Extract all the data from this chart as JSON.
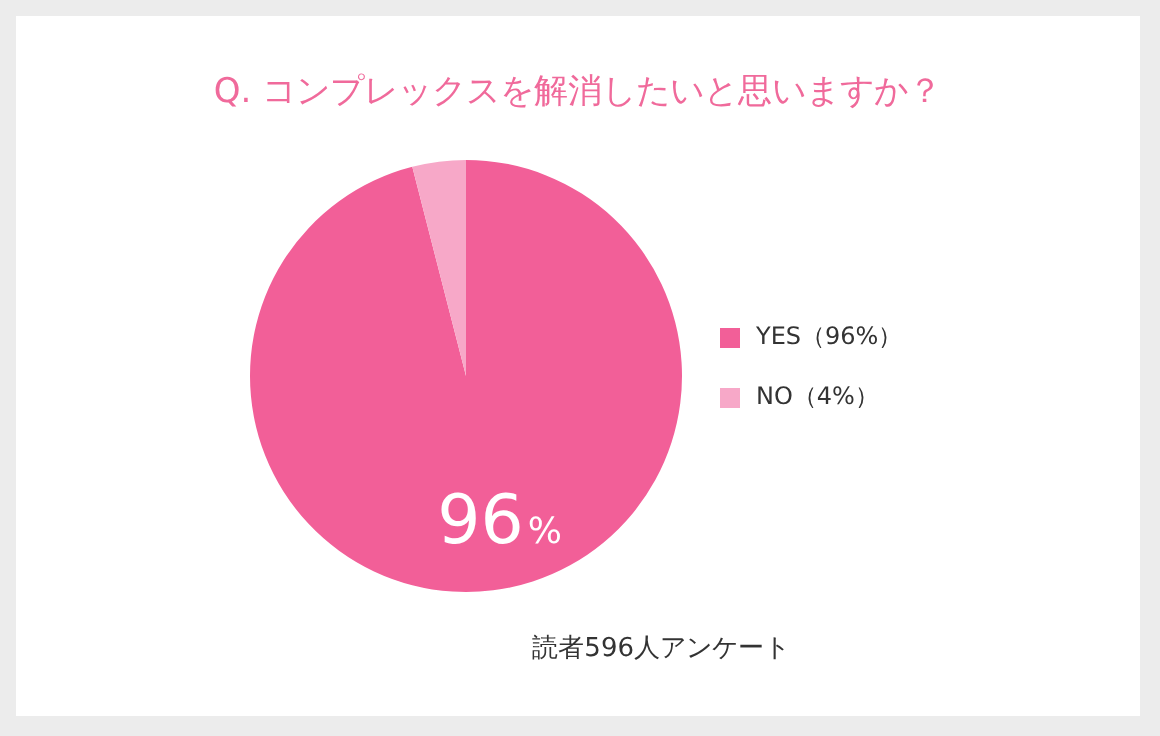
{
  "chart_data": {
    "type": "pie",
    "title": "Q. コンプレックスを解消したいと思いますか？",
    "categories": [
      "YES（96%）",
      "NO（4%）"
    ],
    "values": [
      96,
      4
    ],
    "colors": [
      "#f25f98",
      "#f7a8c8"
    ],
    "value_labels": [
      "96%",
      null
    ],
    "legend": "right",
    "annotations": [
      "読者596人アンケート"
    ]
  }
}
